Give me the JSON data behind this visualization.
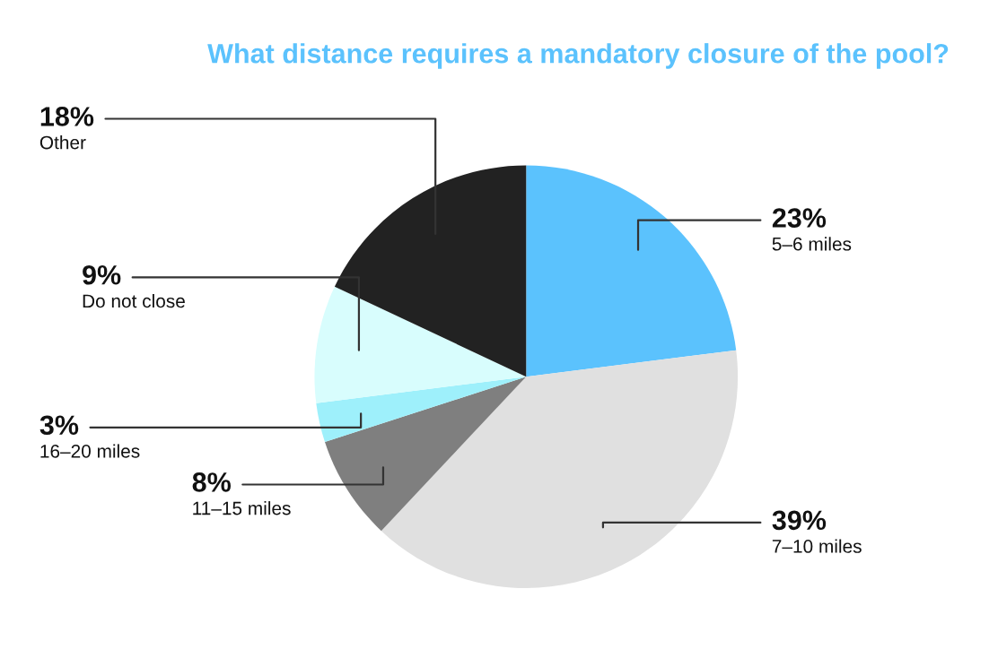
{
  "chart_data": {
    "type": "pie",
    "title": "What distance requires a mandatory closure of the pool?",
    "categories": [
      "5–6 miles",
      "7–10 miles",
      "11–15 miles",
      "16–20 miles",
      "Do not close",
      "Other"
    ],
    "values": [
      23,
      39,
      8,
      3,
      9,
      18
    ],
    "value_labels": [
      "23%",
      "39%",
      "8%",
      "3%",
      "9%",
      "18%"
    ],
    "colors": [
      "#5bc2fd",
      "#e0e0e0",
      "#7f7f7f",
      "#9ef0fb",
      "#d8fdfd",
      "#222222"
    ],
    "legend": false
  }
}
